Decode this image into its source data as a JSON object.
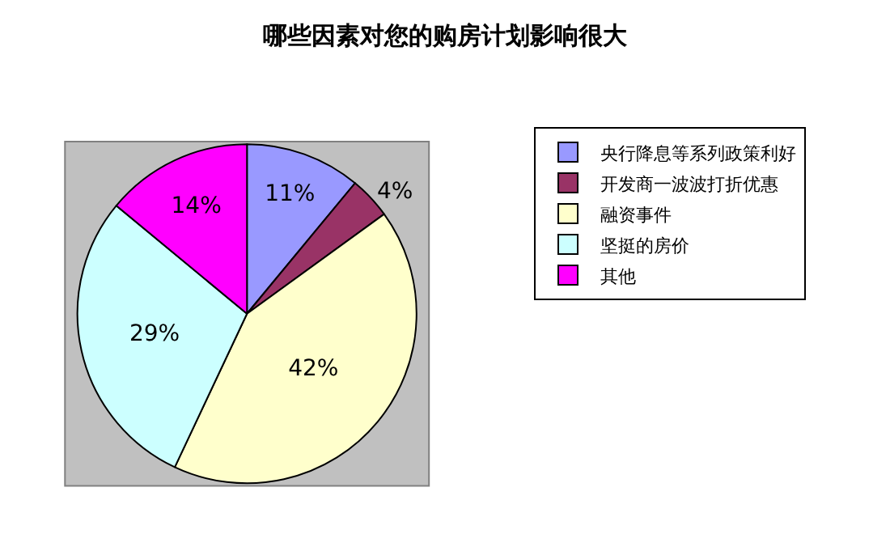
{
  "chart_data": {
    "type": "pie",
    "title": "哪些因素对您的购房计划影响很大",
    "categories": [
      "央行降息等系列政策利好",
      "开发商一波波打折优惠",
      "融资事件",
      "坚挺的房价",
      "其他"
    ],
    "values": [
      11,
      4,
      42,
      29,
      14
    ],
    "colors": [
      "#9999ff",
      "#993366",
      "#ffffcc",
      "#ccffff",
      "#ff00ff"
    ],
    "value_labels": [
      "11%",
      "4%",
      "42%",
      "29%",
      "14%"
    ],
    "legend": "right"
  }
}
